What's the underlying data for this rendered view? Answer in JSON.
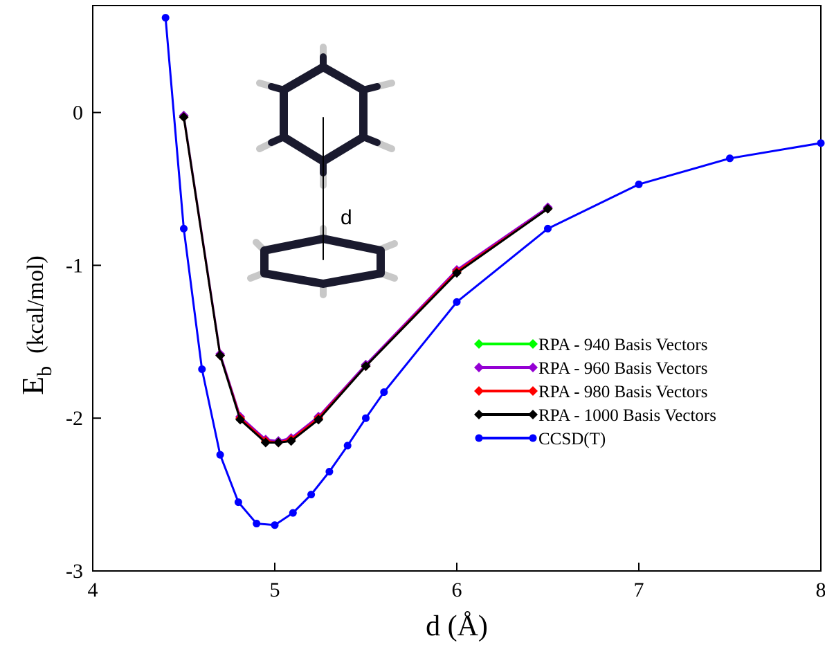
{
  "chart_data": {
    "type": "line",
    "xlabel": "d (Å)",
    "ylabel": {
      "main": "E",
      "sub": "b",
      "unit": "(kcal/mol)"
    },
    "annotation": "d",
    "xlim": [
      4,
      8
    ],
    "xticks": [
      4,
      5,
      6,
      7,
      8
    ],
    "ylim": [
      -3,
      0.7
    ],
    "yticks": [
      -3,
      -2,
      -1,
      0
    ],
    "legend": "center-right",
    "series": [
      {
        "name": "RPA - 940 Basis Vectors",
        "color": "#00ff00",
        "marker": "diamond",
        "x": [
          4.5,
          4.7,
          4.81,
          4.95,
          5.02,
          5.09,
          5.24,
          5.5,
          6.0,
          6.5
        ],
        "values": [
          -0.02,
          -1.59,
          -2.0,
          -2.15,
          -2.15,
          -2.14,
          -2.0,
          -1.65,
          -1.04,
          -0.63
        ]
      },
      {
        "name": "RPA - 960 Basis Vectors",
        "color": "#9400d3",
        "marker": "diamond",
        "x": [
          4.5,
          4.7,
          4.81,
          4.95,
          5.02,
          5.09,
          5.24,
          5.5,
          6.0,
          6.5
        ],
        "values": [
          -0.02,
          -1.58,
          -1.99,
          -2.14,
          -2.15,
          -2.13,
          -1.99,
          -1.65,
          -1.03,
          -0.62
        ]
      },
      {
        "name": "RPA - 980 Basis Vectors",
        "color": "#ff0000",
        "marker": "diamond",
        "x": [
          4.5,
          4.7,
          4.81,
          4.95,
          5.02,
          5.09,
          5.24,
          5.5,
          6.0,
          6.5
        ],
        "values": [
          -0.03,
          -1.59,
          -2.0,
          -2.15,
          -2.16,
          -2.14,
          -2.0,
          -1.66,
          -1.04,
          -0.63
        ]
      },
      {
        "name": "RPA - 1000 Basis Vectors",
        "color": "#000000",
        "marker": "diamond",
        "x": [
          4.5,
          4.7,
          4.81,
          4.95,
          5.02,
          5.09,
          5.24,
          5.5,
          6.0,
          6.5
        ],
        "values": [
          -0.03,
          -1.59,
          -2.01,
          -2.16,
          -2.16,
          -2.15,
          -2.01,
          -1.66,
          -1.05,
          -0.63
        ]
      },
      {
        "name": "CCSD(T)",
        "color": "#0000ff",
        "marker": "circle",
        "x": [
          4.4,
          4.5,
          4.6,
          4.7,
          4.8,
          4.9,
          5.0,
          5.1,
          5.2,
          5.3,
          5.4,
          5.5,
          5.6,
          6.0,
          6.5,
          7.0,
          7.5,
          8.0
        ],
        "values": [
          0.62,
          -0.76,
          -1.68,
          -2.24,
          -2.55,
          -2.69,
          -2.7,
          -2.62,
          -2.5,
          -2.35,
          -2.18,
          -2.0,
          -1.83,
          -1.24,
          -0.76,
          -0.47,
          -0.3,
          -0.2
        ]
      }
    ]
  }
}
